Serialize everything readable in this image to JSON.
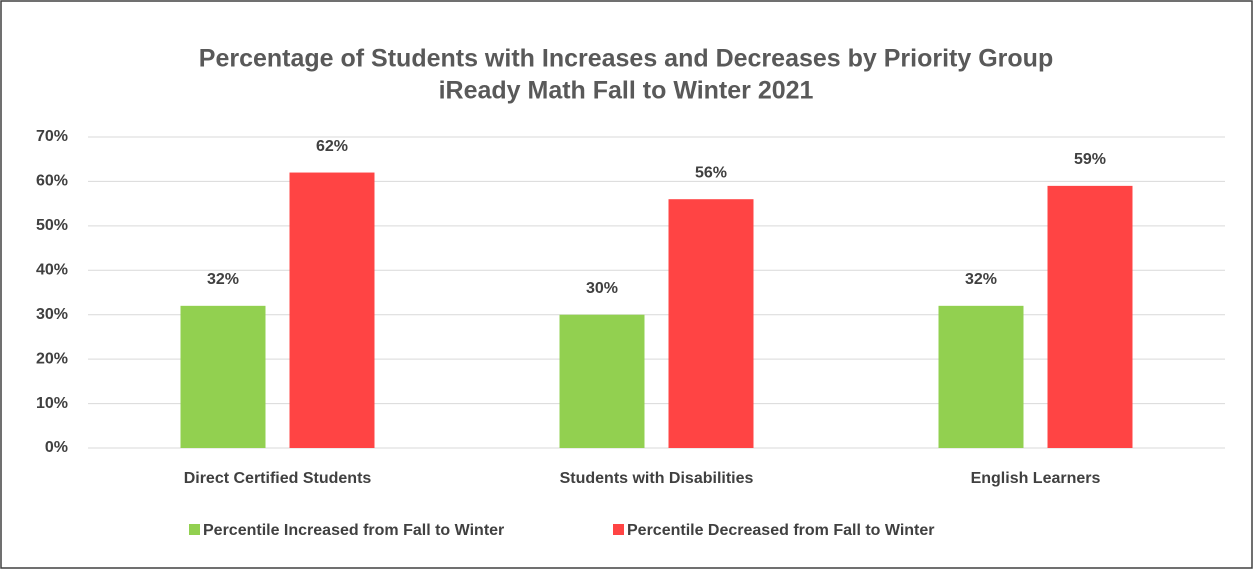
{
  "chart_data": {
    "type": "bar",
    "title": "Percentage of Students with Increases and Decreases by Priority Group",
    "subtitle": "iReady Math Fall to Winter 2021",
    "categories": [
      "Direct Certified Students",
      "Students with Disabilities",
      "English Learners"
    ],
    "series": [
      {
        "name": "Percentile Increased from Fall to Winter",
        "color": "#92d050",
        "values": [
          32,
          30,
          32
        ],
        "value_labels": [
          "32%",
          "30%",
          "32%"
        ]
      },
      {
        "name": "Percentile Decreased from Fall to Winter",
        "color": "#ff4444",
        "values": [
          62,
          56,
          59
        ],
        "value_labels": [
          "62%",
          "56%",
          "59%"
        ]
      }
    ],
    "ylim": [
      0,
      70
    ],
    "yticks": [
      {
        "value": 0,
        "label": "0%"
      },
      {
        "value": 10,
        "label": "10%"
      },
      {
        "value": 20,
        "label": "20%"
      },
      {
        "value": 30,
        "label": "30%"
      },
      {
        "value": 40,
        "label": "40%"
      },
      {
        "value": 50,
        "label": "50%"
      },
      {
        "value": 60,
        "label": "60%"
      },
      {
        "value": 70,
        "label": "70%"
      }
    ],
    "grid": true,
    "legend": "bottom"
  }
}
